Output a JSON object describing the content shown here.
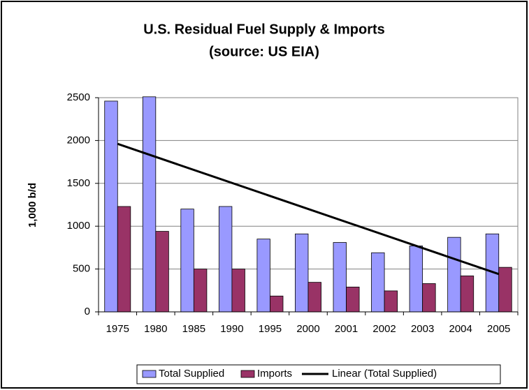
{
  "chart_data": {
    "type": "bar",
    "title": "U.S. Residual Fuel Supply & Imports",
    "subtitle": "(source: US EIA)",
    "y_label": "1,000 b/d",
    "categories": [
      "1975",
      "1980",
      "1985",
      "1990",
      "1995",
      "2000",
      "2001",
      "2002",
      "2003",
      "2004",
      "2005"
    ],
    "series": [
      {
        "name": "Total Supplied",
        "color": "#9999ff",
        "values": [
          2460,
          2510,
          1200,
          1230,
          850,
          910,
          810,
          690,
          770,
          870,
          910
        ]
      },
      {
        "name": "Imports",
        "color": "#993366",
        "values": [
          1230,
          940,
          500,
          500,
          185,
          345,
          290,
          245,
          330,
          420,
          520
        ]
      }
    ],
    "trendline": {
      "name": "Linear (Total Supplied)",
      "color": "#000000"
    },
    "ylim": [
      0,
      2500
    ],
    "yticks": [
      0,
      500,
      1000,
      1500,
      2000,
      2500
    ],
    "grid": true
  }
}
